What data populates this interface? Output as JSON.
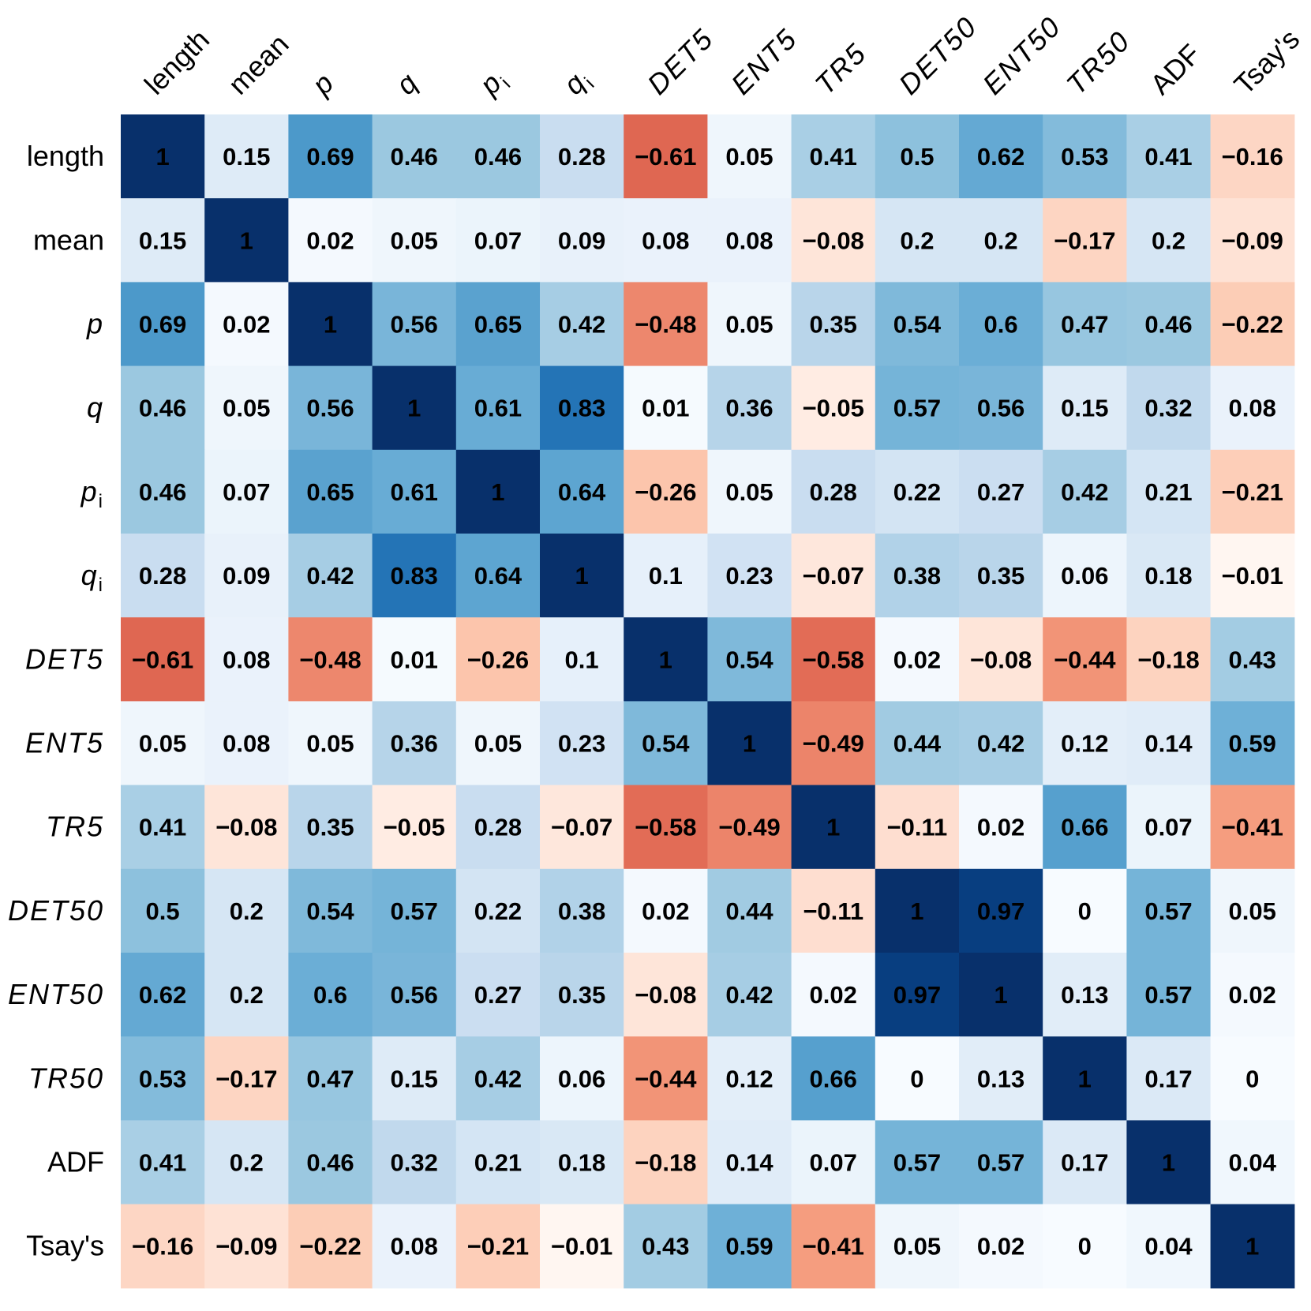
{
  "chart_data": {
    "type": "heatmap",
    "title": "",
    "labels": [
      {
        "text": "length",
        "italic": false,
        "sub": ""
      },
      {
        "text": "mean",
        "italic": false,
        "sub": ""
      },
      {
        "text": "p",
        "italic": true,
        "sub": ""
      },
      {
        "text": "q",
        "italic": true,
        "sub": ""
      },
      {
        "text": "p",
        "italic": true,
        "sub": "i"
      },
      {
        "text": "q",
        "italic": true,
        "sub": "i"
      },
      {
        "text": "DET5",
        "italic": true,
        "sub": ""
      },
      {
        "text": "ENT5",
        "italic": true,
        "sub": ""
      },
      {
        "text": "TR5",
        "italic": true,
        "sub": ""
      },
      {
        "text": "DET50",
        "italic": true,
        "sub": ""
      },
      {
        "text": "ENT50",
        "italic": true,
        "sub": ""
      },
      {
        "text": "TR50",
        "italic": true,
        "sub": ""
      },
      {
        "text": "ADF",
        "italic": false,
        "sub": ""
      },
      {
        "text": "Tsay's",
        "italic": false,
        "sub": ""
      }
    ],
    "matrix": [
      [
        1,
        0.15,
        0.69,
        0.46,
        0.46,
        0.28,
        -0.61,
        0.05,
        0.41,
        0.5,
        0.62,
        0.53,
        0.41,
        -0.16
      ],
      [
        0.15,
        1,
        0.02,
        0.05,
        0.07,
        0.09,
        0.08,
        0.08,
        -0.08,
        0.2,
        0.2,
        -0.17,
        0.2,
        -0.09
      ],
      [
        0.69,
        0.02,
        1,
        0.56,
        0.65,
        0.42,
        -0.48,
        0.05,
        0.35,
        0.54,
        0.6,
        0.47,
        0.46,
        -0.22
      ],
      [
        0.46,
        0.05,
        0.56,
        1,
        0.61,
        0.83,
        0.01,
        0.36,
        -0.05,
        0.57,
        0.56,
        0.15,
        0.32,
        0.08
      ],
      [
        0.46,
        0.07,
        0.65,
        0.61,
        1,
        0.64,
        -0.26,
        0.05,
        0.28,
        0.22,
        0.27,
        0.42,
        0.21,
        -0.21
      ],
      [
        0.28,
        0.09,
        0.42,
        0.83,
        0.64,
        1,
        0.1,
        0.23,
        -0.07,
        0.38,
        0.35,
        0.06,
        0.18,
        -0.01
      ],
      [
        -0.61,
        0.08,
        -0.48,
        0.01,
        -0.26,
        0.1,
        1,
        0.54,
        -0.58,
        0.02,
        -0.08,
        -0.44,
        -0.18,
        0.43
      ],
      [
        0.05,
        0.08,
        0.05,
        0.36,
        0.05,
        0.23,
        0.54,
        1,
        -0.49,
        0.44,
        0.42,
        0.12,
        0.14,
        0.59
      ],
      [
        0.41,
        -0.08,
        0.35,
        -0.05,
        0.28,
        -0.07,
        -0.58,
        -0.49,
        1,
        -0.11,
        0.02,
        0.66,
        0.07,
        -0.41
      ],
      [
        0.5,
        0.2,
        0.54,
        0.57,
        0.22,
        0.38,
        0.02,
        0.44,
        -0.11,
        1,
        0.97,
        0,
        0.57,
        0.05
      ],
      [
        0.62,
        0.2,
        0.6,
        0.56,
        0.27,
        0.35,
        -0.08,
        0.42,
        0.02,
        0.97,
        1,
        0.13,
        0.57,
        0.02
      ],
      [
        0.53,
        -0.17,
        0.47,
        0.15,
        0.42,
        0.06,
        -0.44,
        0.12,
        0.66,
        0,
        0.13,
        1,
        0.17,
        0
      ],
      [
        0.41,
        0.2,
        0.46,
        0.32,
        0.21,
        0.18,
        -0.18,
        0.14,
        0.07,
        0.57,
        0.57,
        0.17,
        1,
        0.04
      ],
      [
        -0.16,
        -0.09,
        -0.22,
        0.08,
        -0.21,
        -0.01,
        0.43,
        0.59,
        -0.41,
        0.05,
        0.02,
        0,
        0.04,
        1
      ]
    ],
    "value_range": [
      -1,
      1
    ],
    "colors": {
      "positive": "#08306b",
      "negative": "#b2182b",
      "neutral": "#ffffff"
    },
    "grid": false,
    "legend": "none"
  }
}
